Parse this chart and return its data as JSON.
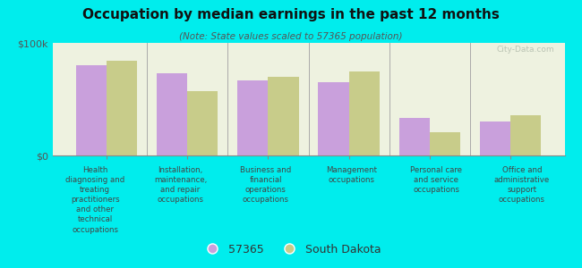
{
  "title": "Occupation by median earnings in the past 12 months",
  "subtitle": "(Note: State values scaled to 57365 population)",
  "background_color": "#00eded",
  "plot_bg_color": "#eef2e0",
  "categories": [
    "Health\ndiagnosing and\ntreating\npractitioners\nand other\ntechnical\noccupations",
    "Installation,\nmaintenance,\nand repair\noccupations",
    "Business and\nfinancial\noperations\noccupations",
    "Management\noccupations",
    "Personal care\nand service\noccupations",
    "Office and\nadministrative\nsupport\noccupations"
  ],
  "values_57365": [
    80000,
    73000,
    67000,
    65000,
    33000,
    30000
  ],
  "values_sd": [
    84000,
    57000,
    70000,
    75000,
    21000,
    36000
  ],
  "color_57365": "#c9a0dc",
  "color_sd": "#c8cc8a",
  "ylim": [
    0,
    100000
  ],
  "ytick_labels": [
    "$0",
    "$100k"
  ],
  "legend_57365": "57365",
  "legend_sd": "South Dakota",
  "bar_width": 0.38,
  "watermark": "City-Data.com"
}
